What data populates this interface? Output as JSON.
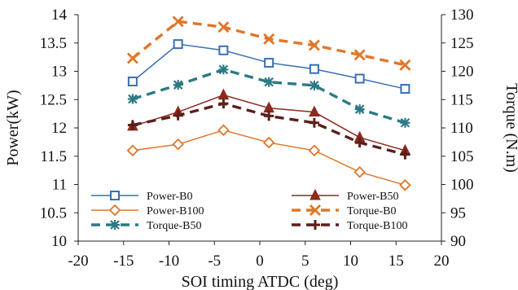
{
  "chart_data": {
    "type": "line",
    "xlabel": "SOI timing  ATDC (deg)",
    "ylabel": "Power(kW)",
    "y2label": "Torque (N.m)",
    "xlim": [
      -20,
      20
    ],
    "ylim": [
      10,
      14
    ],
    "y2lim": [
      90,
      130
    ],
    "xticks": [
      "-20",
      "-15",
      "-10",
      "-5",
      "0",
      "5",
      "10",
      "15",
      "20"
    ],
    "yticks": [
      "10",
      "10.5",
      "11",
      "11.5",
      "12",
      "12.5",
      "13",
      "13.5",
      "14"
    ],
    "y2ticks": [
      "90",
      "95",
      "100",
      "105",
      "110",
      "115",
      "120",
      "125",
      "130"
    ],
    "grid": false,
    "legend_position": "bottom-inside",
    "x": [
      -14,
      -9,
      -4,
      1,
      6,
      11,
      16
    ],
    "series": [
      {
        "name": "Power-B0",
        "axis": "left",
        "color": "#3a6fb0",
        "line": "solid",
        "marker": "square",
        "values": [
          12.82,
          13.48,
          13.37,
          13.15,
          13.04,
          12.87,
          12.69
        ]
      },
      {
        "name": "Power-B50",
        "axis": "left",
        "color": "#8b2a20",
        "line": "solid",
        "marker": "triangle",
        "values": [
          12.03,
          12.28,
          12.58,
          12.35,
          12.28,
          11.83,
          11.6
        ]
      },
      {
        "name": "Power-B100",
        "axis": "left",
        "color": "#e0762a",
        "line": "solid",
        "marker": "diamond",
        "values": [
          11.6,
          11.71,
          11.96,
          11.74,
          11.6,
          11.22,
          10.99
        ]
      },
      {
        "name": "Torque-B0",
        "axis": "right",
        "color": "#e0762a",
        "line": "dashed",
        "marker": "x",
        "values": [
          122.3,
          128.8,
          127.8,
          125.7,
          124.6,
          122.9,
          121.1
        ]
      },
      {
        "name": "Torque-B50",
        "axis": "right",
        "color": "#2c7a86",
        "line": "dashed",
        "marker": "star",
        "values": [
          115.1,
          117.6,
          120.3,
          118.1,
          117.5,
          113.3,
          110.9
        ]
      },
      {
        "name": "Torque-B100",
        "axis": "right",
        "color": "#5c1f1a",
        "line": "dashed",
        "marker": "plus",
        "values": [
          110.5,
          112.2,
          114.3,
          112.1,
          110.9,
          107.4,
          105.3
        ]
      }
    ]
  }
}
